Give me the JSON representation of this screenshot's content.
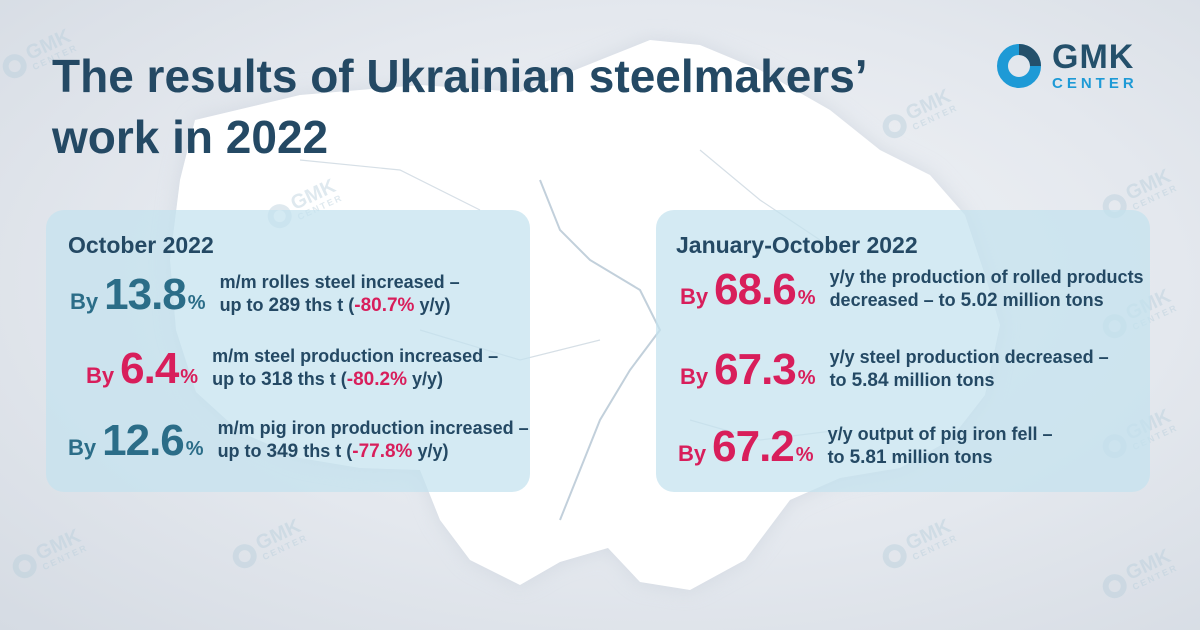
{
  "title": "The results of Ukrainian steelmakers’ work in 2022",
  "logo": {
    "main": "GMK",
    "sub": "CENTER",
    "icon": "logo-ring-icon"
  },
  "watermark": {
    "main": "GMK",
    "sub": "CENTER"
  },
  "colors": {
    "dark_blue": "#244964",
    "teal": "#2b6d88",
    "pink": "#d81e5b",
    "panel": "#c4e2ee",
    "logo_blue": "#1e9ad6"
  },
  "left_panel": {
    "title": "October 2022",
    "items": [
      {
        "by": "By",
        "value": "13.8",
        "unit": "%",
        "line1": "m/m rolles steel  increased –",
        "line2_pre": "up to ",
        "amount": "289",
        "line2_mid": " ths t (",
        "yy": "-80.7%",
        "line2_post": " y/y)"
      },
      {
        "by": "By",
        "value": "6.4",
        "unit": "%",
        "line1": "m/m steel production increased –",
        "line2_pre": "up to ",
        "amount": "318",
        "line2_mid": " ths t  (",
        "yy": "-80.2%",
        "line2_post": "  y/y)"
      },
      {
        "by": "By",
        "value": "12.6",
        "unit": "%",
        "line1": "m/m pig iron production increased –",
        "line2_pre": "up to ",
        "amount": "349",
        "line2_mid": " ths t (",
        "yy": "-77.8%",
        "line2_post": " y/y)"
      }
    ]
  },
  "right_panel": {
    "title": "January-October  2022",
    "items": [
      {
        "by": "By",
        "value": "68.6",
        "unit": "%",
        "line1": "y/y the production of rolled products",
        "line2_pre": "decreased – to ",
        "amount": "5.02",
        "line2_post": " million tons"
      },
      {
        "by": "By",
        "value": "67.3",
        "unit": "%",
        "line1": "y/y steel production decreased  –",
        "line2_pre": "to ",
        "amount": "5.84",
        "line2_post": " million tons"
      },
      {
        "by": "By",
        "value": "67.2",
        "unit": "%",
        "line1": "y/y output of pig iron fell –",
        "line2_pre": "to ",
        "amount": "5.81",
        "line2_post": " million tons"
      }
    ]
  }
}
